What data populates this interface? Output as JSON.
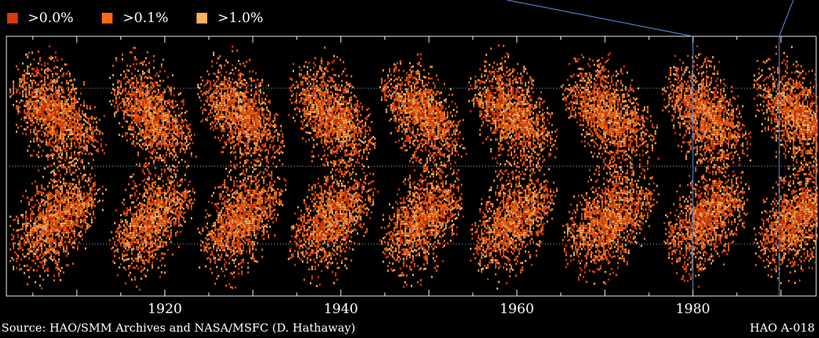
{
  "legend": {
    "items": [
      {
        "label": ">0.0%",
        "color": "#d63c0c"
      },
      {
        "label": ">0.1%",
        "color": "#ff6a12"
      },
      {
        "label": ">1.0%",
        "color": "#ffb060"
      }
    ]
  },
  "source_text": "Source: HAO/SMM Archives and NASA/MSFC (D. Hathaway)",
  "id_text": "HAO A-018",
  "chart_data": {
    "type": "heatmap",
    "title": "",
    "xlabel": "",
    "ylabel": "",
    "xlim": [
      1902,
      1994
    ],
    "ylim": [
      -50,
      50
    ],
    "x_ticks": [
      {
        "value": 1920,
        "label": "1920"
      },
      {
        "value": 1940,
        "label": "1940"
      },
      {
        "value": 1960,
        "label": "1960"
      },
      {
        "value": 1980,
        "label": "1980"
      }
    ],
    "reference_latitudes": [
      -30,
      0,
      30
    ],
    "cycle_minima_years": [
      1902,
      1913.5,
      1923.5,
      1933.8,
      1944.2,
      1954.3,
      1964.8,
      1976.3,
      1986.7
    ],
    "highlight_years": [
      1980,
      1989.8
    ],
    "colors": {
      "frame": "#ffffff",
      "highlight": "#4f86d9",
      "reference": "#bbbbbb"
    }
  }
}
